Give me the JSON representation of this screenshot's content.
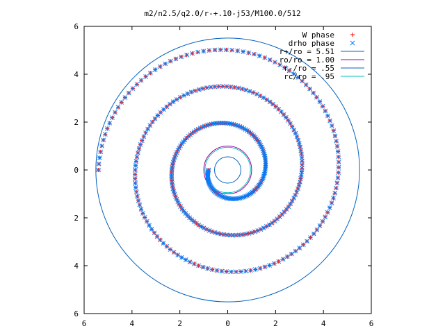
{
  "chart_data": {
    "type": "scatter",
    "title": "m2/n2.5/q2.0/r-+.10-j53/M100.0/512",
    "xlabel": "",
    "ylabel": "",
    "xlim": [
      -6,
      6
    ],
    "ylim": [
      -6,
      6
    ],
    "grid": false,
    "legend_position": "top-right",
    "x_ticks": [
      -6,
      -4,
      -2,
      0,
      2,
      4,
      6
    ],
    "y_ticks": [
      -6,
      -4,
      -2,
      0,
      2,
      4,
      6
    ],
    "x_tick_labels": [
      "6",
      "4",
      "2",
      "0",
      "2",
      "4",
      "6"
    ],
    "y_tick_labels": [
      "6",
      "4",
      "2",
      "0",
      "2",
      "4",
      "6"
    ],
    "series": [
      {
        "name": "W phase",
        "marker": "+",
        "color": "#ff0000",
        "spiral": {
          "r_start": 0.8,
          "r_end": 5.4,
          "theta_start_deg": 180,
          "theta_end_deg": 1260
        }
      },
      {
        "name": "drho phase",
        "marker": "x",
        "color": "#0080ff",
        "spiral": {
          "r_start": 0.8,
          "r_end": 5.4,
          "theta_start_deg": 180,
          "theta_end_deg": 1260
        }
      }
    ],
    "circles": [
      {
        "label": "r+/ro = 5.51",
        "radius": 5.51,
        "color": "#0060c0"
      },
      {
        "label": "ro/ro = 1.00",
        "radius": 1.0,
        "color": "#a000a0"
      },
      {
        "label": "r-/ro = .55",
        "radius": 0.55,
        "color": "#0060c0"
      },
      {
        "label": "rc/ro = .95",
        "radius": 0.95,
        "color": "#00c0c0"
      }
    ]
  }
}
